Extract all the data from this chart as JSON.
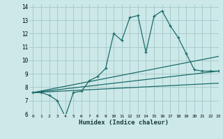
{
  "xlabel": "Humidex (Indice chaleur)",
  "ylabel": "",
  "background_color": "#cde8e8",
  "grid_color": "#a8cccc",
  "line_color": "#1a6b6b",
  "xlim": [
    -0.5,
    23
  ],
  "ylim": [
    6,
    14.2
  ],
  "xticks": [
    0,
    1,
    2,
    3,
    4,
    5,
    6,
    7,
    8,
    9,
    10,
    11,
    12,
    13,
    14,
    15,
    16,
    17,
    18,
    19,
    20,
    21,
    22,
    23
  ],
  "yticks": [
    6,
    7,
    8,
    9,
    10,
    11,
    12,
    13,
    14
  ],
  "series": [
    {
      "x": [
        0,
        1,
        2,
        3,
        4,
        5,
        6,
        7,
        8,
        9,
        10,
        11,
        12,
        13,
        14,
        15,
        16,
        17,
        18,
        19,
        20,
        21,
        22,
        23
      ],
      "y": [
        7.6,
        7.6,
        7.4,
        7.0,
        5.8,
        7.6,
        7.7,
        8.5,
        8.8,
        9.4,
        12.0,
        11.5,
        13.2,
        13.35,
        10.6,
        13.3,
        13.7,
        12.6,
        11.7,
        10.5,
        9.3,
        9.2,
        9.2,
        9.2
      ],
      "marker": true
    },
    {
      "x": [
        0,
        23
      ],
      "y": [
        7.6,
        10.3
      ],
      "marker": false
    },
    {
      "x": [
        0,
        23
      ],
      "y": [
        7.6,
        9.2
      ],
      "marker": false
    },
    {
      "x": [
        0,
        23
      ],
      "y": [
        7.6,
        8.3
      ],
      "marker": false
    }
  ]
}
